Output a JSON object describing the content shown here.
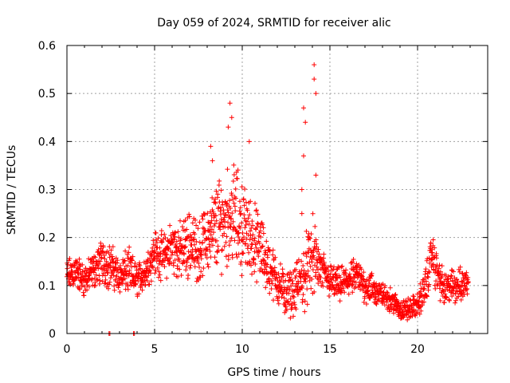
{
  "chart_data": {
    "type": "scatter",
    "title": "Day 059 of 2024, SRMTID for receiver alic",
    "xlabel": "GPS time / hours",
    "ylabel": "SRMTID / TECUs",
    "xlim": [
      0,
      24
    ],
    "ylim": [
      0,
      0.6
    ],
    "x_ticks": [
      "0",
      "5",
      "10",
      "15",
      "20"
    ],
    "y_ticks": [
      "0",
      "0.1",
      "0.2",
      "0.3",
      "0.4",
      "0.5",
      "0.6"
    ],
    "grid": true,
    "marker": "+",
    "color": "#ff0000",
    "series": [
      {
        "name": "SRMTID",
        "trend": {
          "x": [
            0.0,
            0.5,
            1.0,
            1.5,
            2.0,
            2.5,
            3.0,
            3.5,
            4.0,
            4.5,
            5.0,
            5.5,
            6.0,
            6.5,
            7.0,
            7.5,
            8.0,
            8.5,
            9.0,
            9.5,
            10.0,
            10.5,
            11.0,
            11.5,
            12.0,
            12.5,
            13.0,
            13.5,
            14.0,
            14.5,
            15.0,
            15.5,
            16.0,
            16.5,
            17.0,
            17.5,
            18.0,
            18.5,
            19.0,
            19.5,
            20.0,
            20.5,
            20.8,
            21.0,
            21.5,
            22.0,
            22.5,
            22.9
          ],
          "y": [
            0.12,
            0.13,
            0.11,
            0.13,
            0.15,
            0.14,
            0.12,
            0.13,
            0.11,
            0.13,
            0.17,
            0.16,
            0.18,
            0.17,
            0.19,
            0.17,
            0.2,
            0.22,
            0.24,
            0.25,
            0.22,
            0.2,
            0.18,
            0.14,
            0.11,
            0.08,
            0.09,
            0.12,
            0.16,
            0.13,
            0.11,
            0.1,
            0.11,
            0.12,
            0.1,
            0.09,
            0.08,
            0.07,
            0.05,
            0.05,
            0.06,
            0.1,
            0.17,
            0.14,
            0.09,
            0.1,
            0.1,
            0.11
          ],
          "spread": [
            0.03,
            0.03,
            0.03,
            0.03,
            0.04,
            0.04,
            0.03,
            0.04,
            0.03,
            0.03,
            0.04,
            0.04,
            0.05,
            0.05,
            0.06,
            0.05,
            0.06,
            0.08,
            0.08,
            0.09,
            0.08,
            0.07,
            0.06,
            0.05,
            0.04,
            0.04,
            0.04,
            0.06,
            0.07,
            0.04,
            0.03,
            0.03,
            0.03,
            0.03,
            0.03,
            0.03,
            0.02,
            0.02,
            0.02,
            0.02,
            0.02,
            0.04,
            0.03,
            0.04,
            0.03,
            0.03,
            0.03,
            0.03
          ]
        },
        "peaks": [
          {
            "x": 8.2,
            "y": 0.39
          },
          {
            "x": 8.3,
            "y": 0.36
          },
          {
            "x": 9.3,
            "y": 0.48
          },
          {
            "x": 9.4,
            "y": 0.45
          },
          {
            "x": 9.2,
            "y": 0.43
          },
          {
            "x": 10.4,
            "y": 0.4
          },
          {
            "x": 13.5,
            "y": 0.47
          },
          {
            "x": 13.6,
            "y": 0.44
          },
          {
            "x": 13.5,
            "y": 0.37
          },
          {
            "x": 14.1,
            "y": 0.56
          },
          {
            "x": 14.1,
            "y": 0.53
          },
          {
            "x": 14.2,
            "y": 0.5
          },
          {
            "x": 14.2,
            "y": 0.33
          },
          {
            "x": 13.4,
            "y": 0.3
          },
          {
            "x": 13.4,
            "y": 0.25
          }
        ],
        "zero_points": [
          {
            "x": 2.4,
            "y": 0.0
          },
          {
            "x": 2.45,
            "y": 0.0
          },
          {
            "x": 3.8,
            "y": 0.0
          },
          {
            "x": 3.85,
            "y": 0.0
          }
        ]
      }
    ]
  }
}
